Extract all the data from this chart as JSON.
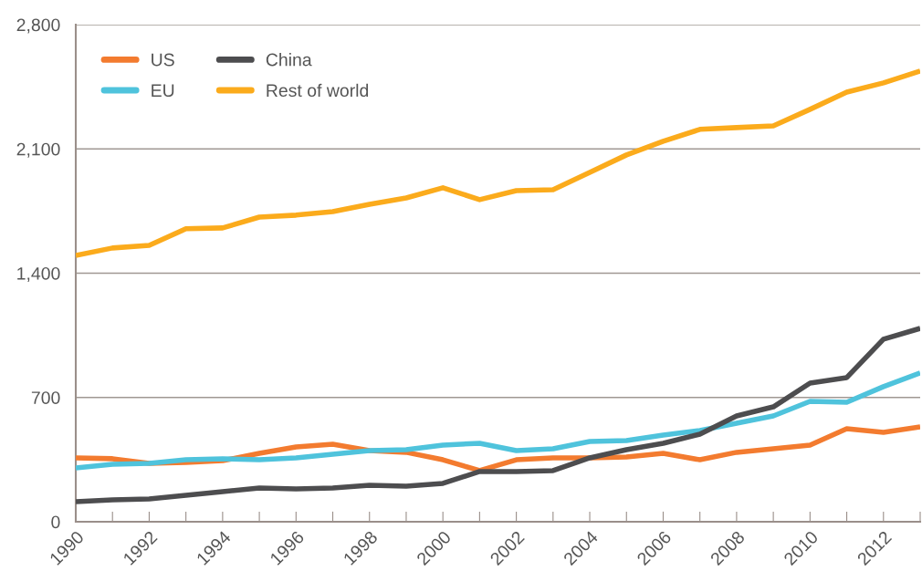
{
  "chart_data": {
    "type": "line",
    "x": [
      1990,
      1991,
      1992,
      1993,
      1994,
      1995,
      1996,
      1997,
      1998,
      1999,
      2000,
      2001,
      2002,
      2003,
      2004,
      2005,
      2006,
      2007,
      2008,
      2009,
      2010,
      2011,
      2012,
      2013
    ],
    "series": [
      {
        "name": "US",
        "color": "#f37b2f",
        "values": [
          360,
          355,
          329,
          334,
          344,
          385,
          421,
          437,
          401,
          391,
          349,
          288,
          349,
          360,
          360,
          365,
          385,
          349,
          391,
          411,
          432,
          524,
          504,
          534
        ]
      },
      {
        "name": "EU",
        "color": "#4fc3dc",
        "values": [
          303,
          324,
          329,
          349,
          355,
          349,
          360,
          380,
          401,
          406,
          432,
          442,
          401,
          411,
          452,
          457,
          488,
          514,
          555,
          596,
          678,
          673,
          761,
          838
        ]
      },
      {
        "name": "China",
        "color": "#4d4d4f",
        "values": [
          113,
          123,
          128,
          149,
          170,
          190,
          185,
          190,
          206,
          200,
          216,
          283,
          283,
          288,
          360,
          406,
          442,
          493,
          596,
          647,
          781,
          812,
          1028,
          1089
        ]
      },
      {
        "name": "Rest of world",
        "color": "#fbab1c",
        "values": [
          1500,
          1542,
          1557,
          1650,
          1655,
          1716,
          1727,
          1747,
          1788,
          1824,
          1881,
          1814,
          1865,
          1870,
          1968,
          2066,
          2143,
          2210,
          2220,
          2230,
          2323,
          2420,
          2472,
          2539
        ]
      }
    ],
    "xlim": [
      1990,
      2013
    ],
    "xticks": [
      1990,
      {
        "value": 1991,
        "label": null
      },
      1992,
      {
        "value": 1993,
        "label": null
      },
      1994,
      {
        "value": 1995,
        "label": null
      },
      1996,
      {
        "value": 1997,
        "label": null
      },
      1998,
      {
        "value": 1999,
        "label": null
      },
      2000,
      {
        "value": 2001,
        "label": null
      },
      2002,
      {
        "value": 2003,
        "label": null
      },
      2004,
      {
        "value": 2005,
        "label": null
      },
      2006,
      {
        "value": 2007,
        "label": null
      },
      2008,
      {
        "value": 2009,
        "label": null
      },
      2010,
      {
        "value": 2011,
        "label": null
      },
      2012,
      {
        "value": 2013,
        "label": null
      }
    ],
    "ylim": [
      0,
      2800
    ],
    "yticks": [
      {
        "value": 0,
        "label": "0"
      },
      {
        "value": 700,
        "label": "700"
      },
      {
        "value": 1400,
        "label": "1,400"
      },
      {
        "value": 2100,
        "label": "2,100"
      },
      {
        "value": 2800,
        "label": "2,800"
      }
    ],
    "grid": "y",
    "legend": "top left",
    "marker": "none",
    "line_style": "solid"
  }
}
